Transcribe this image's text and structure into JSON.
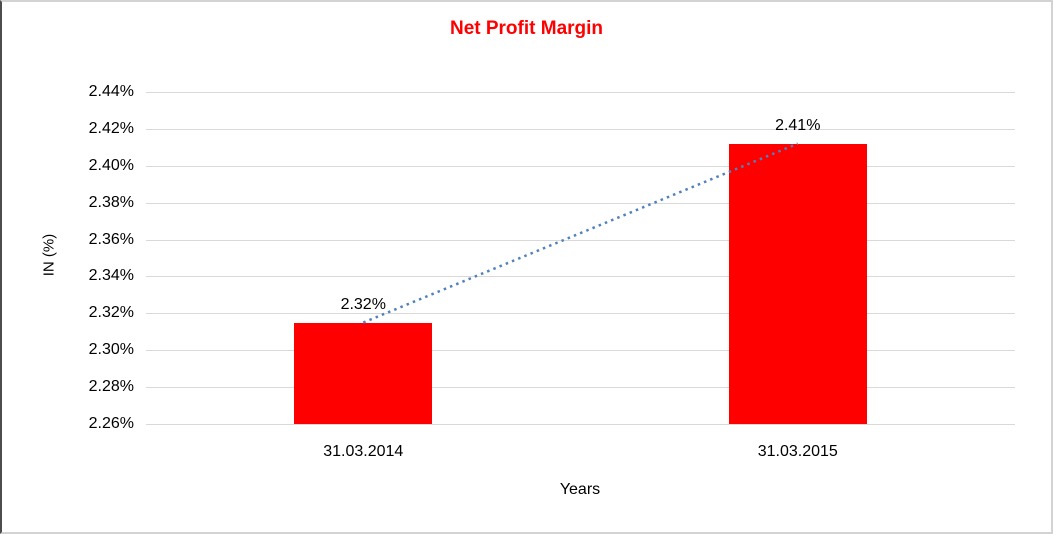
{
  "chart_data": {
    "type": "bar",
    "title": "Net Profit Margin",
    "xlabel": "Years",
    "ylabel": "IN (%)",
    "categories": [
      "31.03.2014",
      "31.03.2015"
    ],
    "values": [
      2.315,
      2.412
    ],
    "data_labels": [
      "2.32%",
      "2.41%"
    ],
    "y_ticks": [
      "2.44%",
      "2.42%",
      "2.40%",
      "2.38%",
      "2.36%",
      "2.34%",
      "2.32%",
      "2.30%",
      "2.28%",
      "2.26%"
    ],
    "ylim": [
      2.26,
      2.44
    ],
    "grid": true,
    "legend": "none",
    "trendline": {
      "from_point": 0,
      "to_point": 1,
      "style": "dotted"
    },
    "colors": {
      "bar": "#FF0000",
      "title": "#FF0000",
      "trendline": "#4F81BD",
      "gridline": "#D9D9D9",
      "text": "#000000",
      "frame_border": "#D3D3D3",
      "frame_border_left": "#4D4D4D",
      "background": "#FFFFFF"
    }
  }
}
